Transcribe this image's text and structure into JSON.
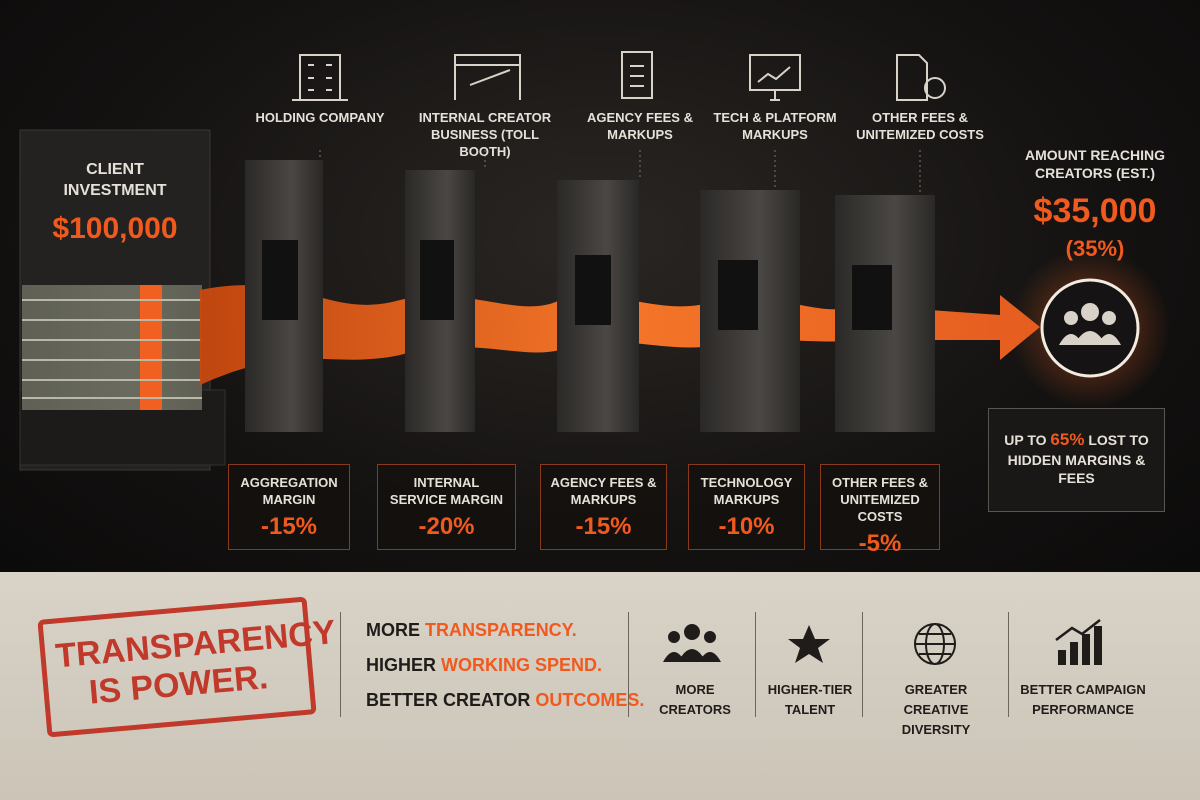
{
  "client": {
    "label": "CLIENT INVESTMENT",
    "amount": "$100,000"
  },
  "stages": [
    {
      "title": "HOLDING COMPANY",
      "label": "AGGREGATION MARGIN",
      "deduction": "-15%"
    },
    {
      "title": "INTERNAL CREATOR BUSINESS (TOLL BOOTH)",
      "label": "INTERNAL SERVICE MARGIN",
      "deduction": "-20%"
    },
    {
      "title": "AGENCY FEES & MARKUPS",
      "label": "AGENCY FEES & MARKUPS",
      "deduction": "-15%"
    },
    {
      "title": "TECH & PLATFORM MARKUPS",
      "label": "TECHNOLOGY MARKUPS",
      "deduction": "-10%"
    },
    {
      "title": "OTHER FEES & UNITEMIZED COSTS",
      "label": "OTHER FEES & UNITEMIZED COSTS",
      "deduction": "-5%"
    }
  ],
  "result": {
    "label": "AMOUNT REACHING CREATORS (EST.)",
    "amount": "$35,000",
    "share": "(35%)"
  },
  "loss_note": {
    "prefix": "UP TO",
    "highlight": "65%",
    "suffix": "LOST TO HIDDEN MARGINS & FEES"
  },
  "footer": {
    "stamp": "TRANSPARENCY IS POWER.",
    "slogans": [
      {
        "lead": "MORE",
        "highlight": "TRANSPARENCY."
      },
      {
        "lead": "HIGHER",
        "highlight": "WORKING SPEND."
      },
      {
        "lead": "BETTER CREATOR",
        "highlight": "OUTCOMES."
      }
    ],
    "benefits": [
      "MORE CREATORS",
      "HIGHER-TIER TALENT",
      "GREATER CREATIVE DIVERSITY",
      "BETTER CAMPAIGN PERFORMANCE"
    ]
  }
}
